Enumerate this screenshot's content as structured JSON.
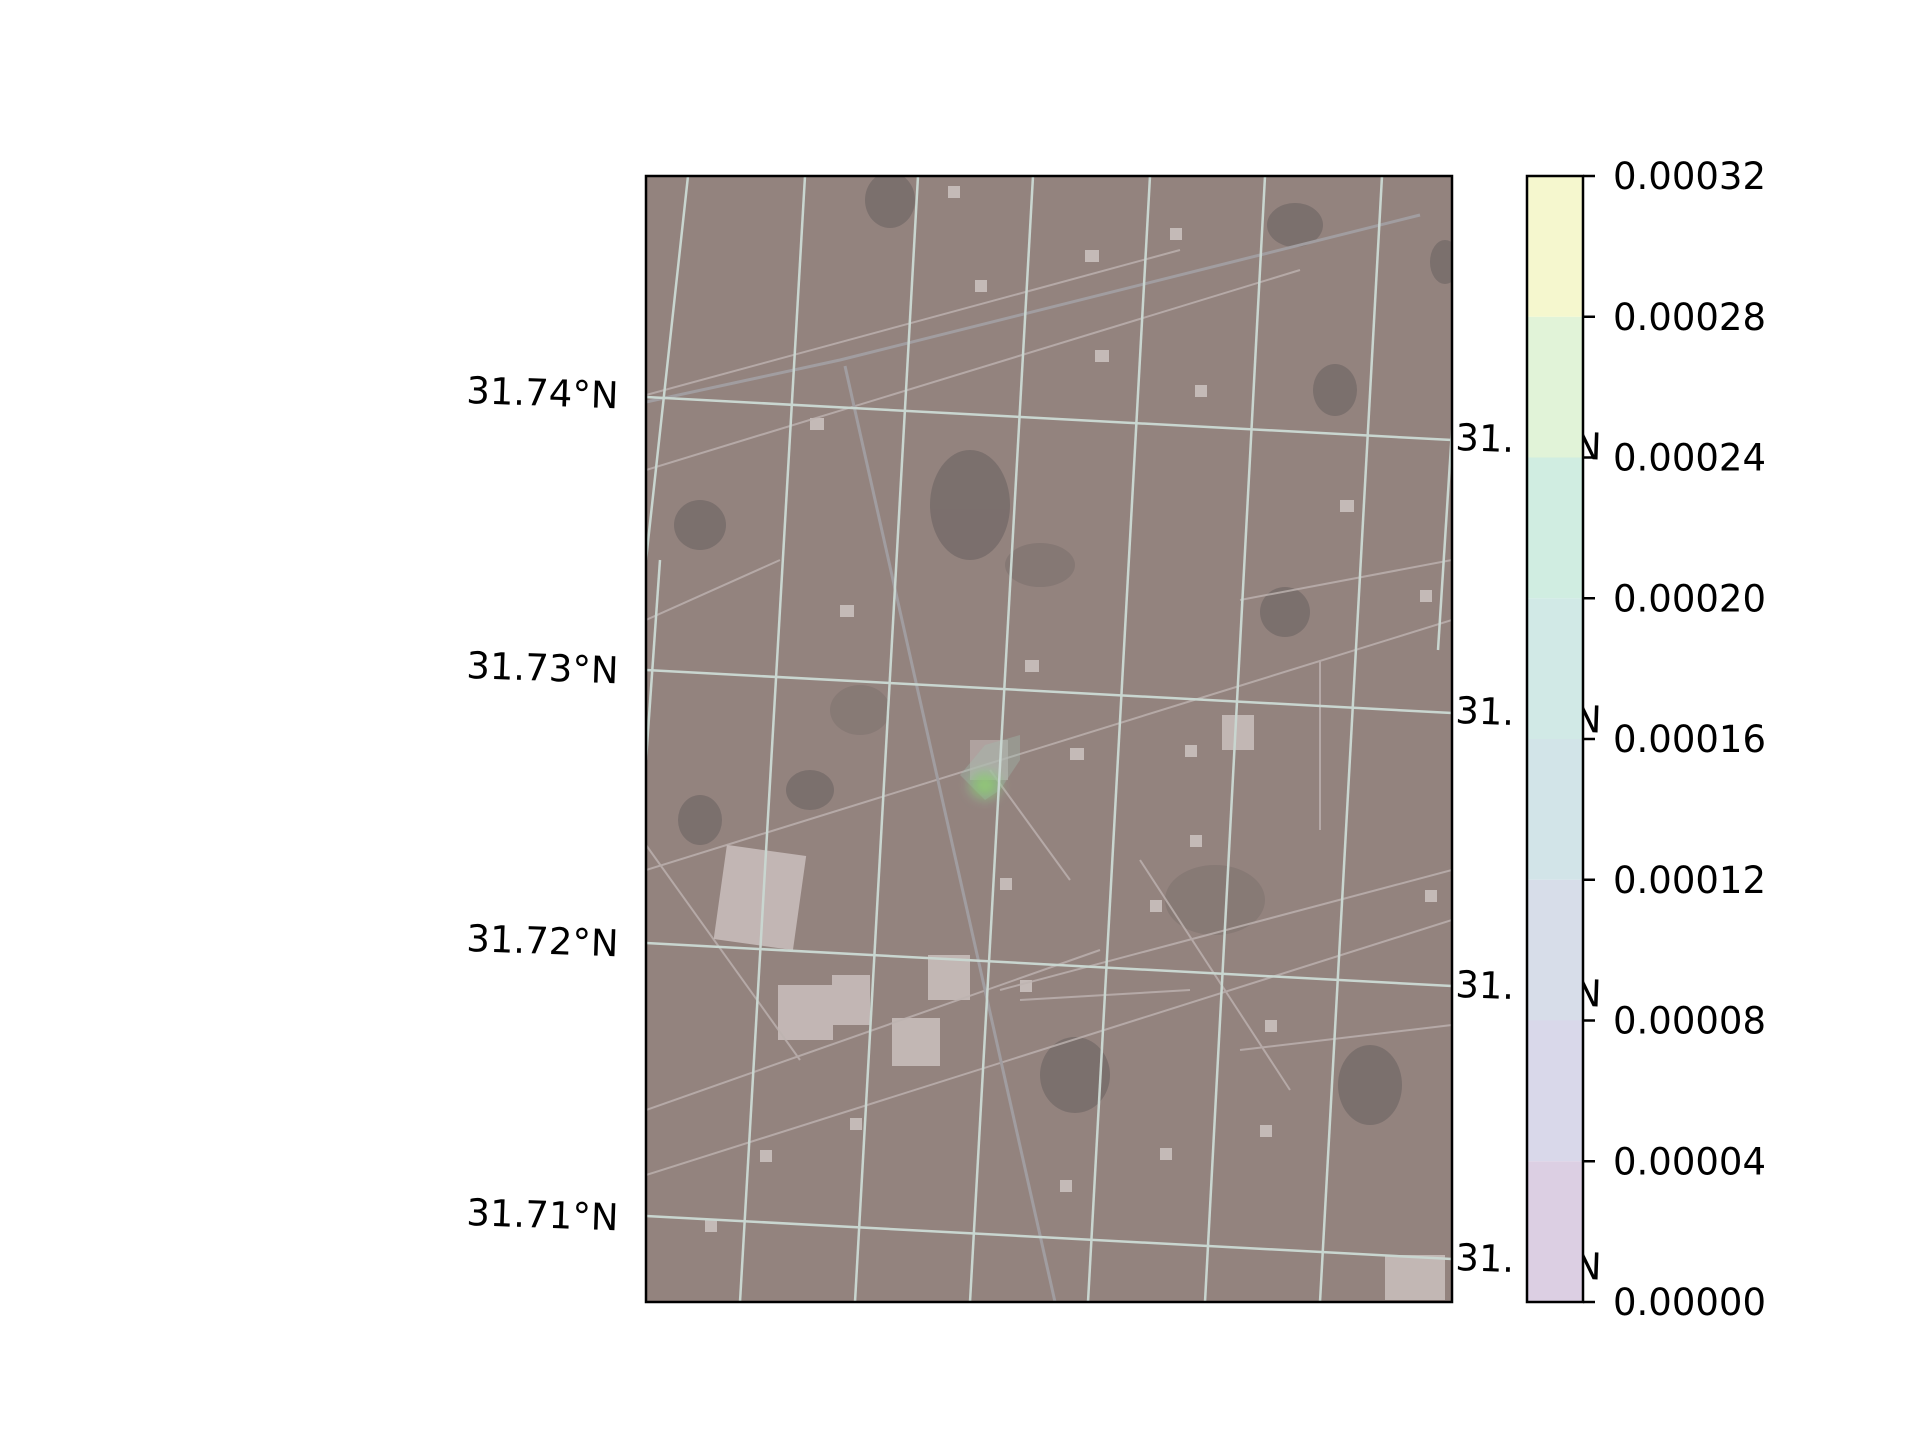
{
  "map": {
    "layer": "satellite imagery",
    "left_lat_labels": [
      "31.74°N",
      "31.73°N",
      "31.72°N",
      "31.71°N"
    ],
    "right_lat_labels": [
      "31.",
      "31.",
      "31.",
      "31."
    ],
    "right_lat_suffix": "°N",
    "gridline_color": "#c9d6d0",
    "plume_color": "#7fc86a"
  },
  "colorbar": {
    "ticks": [
      "0.00032",
      "0.00028",
      "0.00024",
      "0.00020",
      "0.00016",
      "0.00012",
      "0.00008",
      "0.00004",
      "0.00000"
    ],
    "range": [
      0,
      0.00032
    ],
    "bands": [
      {
        "from": 0.0,
        "to": 4e-05,
        "color": "#dccfe3"
      },
      {
        "from": 4e-05,
        "to": 8e-05,
        "color": "#d9d8ea"
      },
      {
        "from": 8e-05,
        "to": 0.00012,
        "color": "#d7dde9"
      },
      {
        "from": 0.00012,
        "to": 0.00016,
        "color": "#d2e4e8"
      },
      {
        "from": 0.00016,
        "to": 0.0002,
        "color": "#d1e9e6"
      },
      {
        "from": 0.0002,
        "to": 0.00024,
        "color": "#d0ede1"
      },
      {
        "from": 0.00024,
        "to": 0.00028,
        "color": "#e1f3d8"
      },
      {
        "from": 0.00028,
        "to": 0.00032,
        "color": "#f5f7ce"
      }
    ]
  }
}
